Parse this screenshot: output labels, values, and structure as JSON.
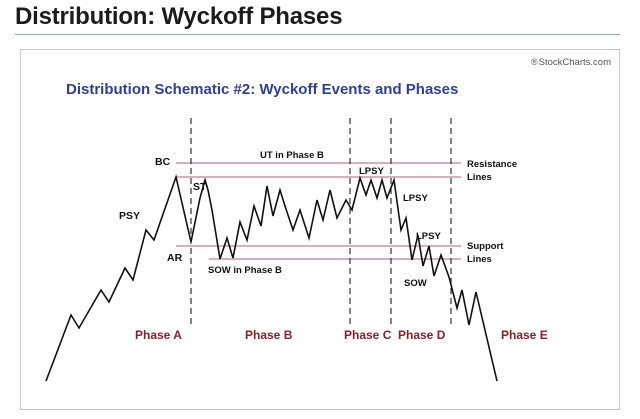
{
  "page": {
    "heading": "Distribution: Wyckoff Phases"
  },
  "figure": {
    "watermark": "StockCharts.com",
    "watermark_symbol": "®",
    "title": "Distribution Schematic #2: Wyckoff Events and Phases",
    "event_labels": {
      "bc": "BC",
      "psy": "PSY",
      "st": "ST",
      "ar": "AR",
      "ut": "UT in Phase B",
      "sow_b": "SOW in Phase B",
      "lpsy_top": "LPSY",
      "lpsy_mid": "LPSY",
      "lpsy_low": "LPSY",
      "sow": "SOW"
    },
    "line_labels": {
      "resistance_1": "Resistance",
      "resistance_2": "Lines",
      "support_1": "Support",
      "support_2": "Lines"
    },
    "phases": {
      "a": "Phase A",
      "b": "Phase B",
      "c": "Phase C",
      "d": "Phase D",
      "e": "Phase E"
    },
    "colors": {
      "title": "#2d3f9e",
      "phase_labels": "#8b1e2c",
      "level_lines": "#b85c70",
      "price_path": "#111111",
      "phase_dividers": "#333333"
    }
  }
}
